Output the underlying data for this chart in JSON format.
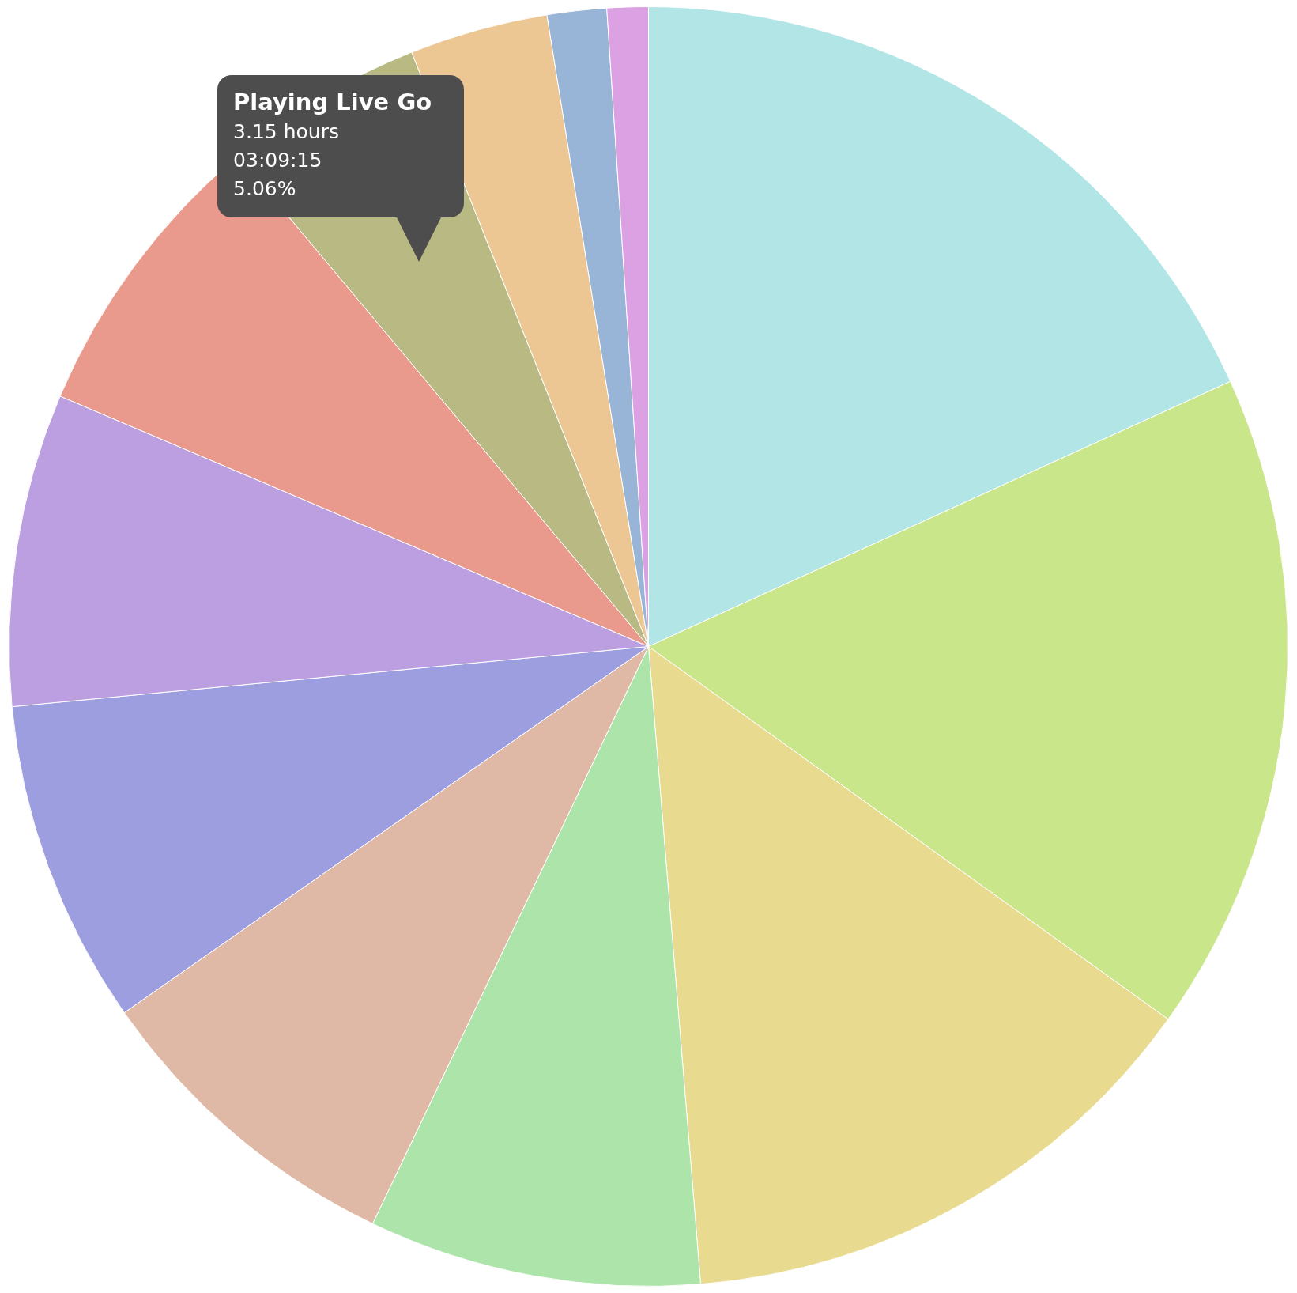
{
  "chart_data": {
    "type": "pie",
    "categories": [
      null,
      null,
      null,
      null,
      null,
      null,
      null,
      null,
      "Playing Live Go",
      null,
      null,
      null
    ],
    "values": [
      18.2,
      16.7,
      13.8,
      8.4,
      8.2,
      8.2,
      7.9,
      7.5,
      5.06,
      3.5,
      1.5,
      1.04
    ],
    "colors": [
      "#b1e5e6",
      "#cae68a",
      "#e8da8f",
      "#ace4aa",
      "#dfb9a6",
      "#9c9ee0",
      "#bb9fe0",
      "#ea9a8d",
      "#b9b984",
      "#edc793",
      "#98b4d6",
      "#dba1e2"
    ],
    "annotations": [
      "3.15 hours",
      "03:09:15",
      "5.06%"
    ],
    "legend": false
  }
}
